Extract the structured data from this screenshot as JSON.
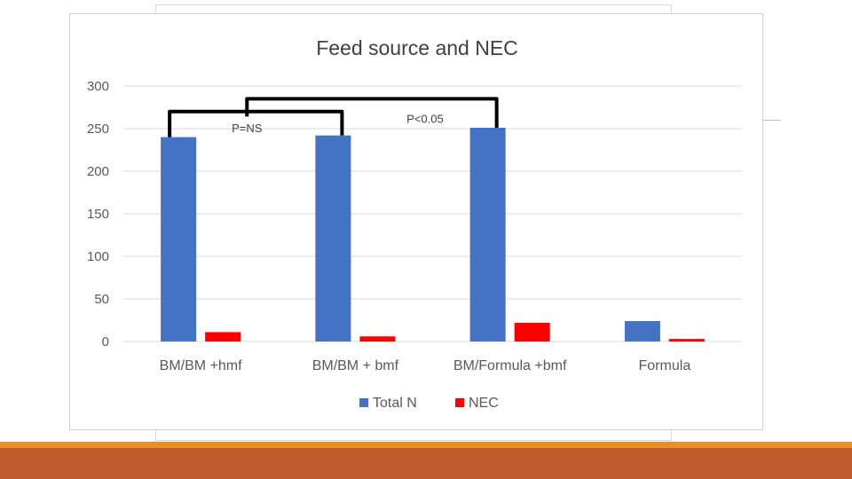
{
  "chart_data": {
    "type": "bar",
    "title": "Feed source and NEC",
    "categories": [
      "BM/BM +hmf",
      "BM/BM + bmf",
      "BM/Formula +bmf",
      "Formula"
    ],
    "series": [
      {
        "name": "Total N",
        "color": "#4472c4",
        "values": [
          240,
          242,
          251,
          24
        ]
      },
      {
        "name": "NEC",
        "color": "#ff0000",
        "values": [
          11,
          6,
          22,
          3
        ]
      }
    ],
    "ylim": [
      0,
      300
    ],
    "yticks": [
      0,
      50,
      100,
      150,
      200,
      250,
      300
    ],
    "xlabel": "",
    "ylabel": "",
    "grid": true,
    "legend": "bottom",
    "annotations": [
      {
        "label": "P=NS",
        "from": 0,
        "to": 1,
        "level": 270
      },
      {
        "label": "P<0.05",
        "from": 0.5,
        "to": 2,
        "level": 285
      }
    ]
  },
  "colors": {
    "accent_band": "#bf5a2a",
    "accent_band_light": "#e8912b",
    "grid": "#d9d9d9"
  }
}
